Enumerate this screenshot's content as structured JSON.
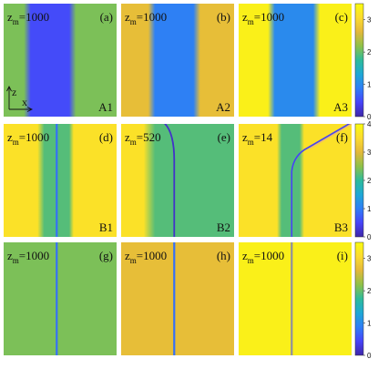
{
  "colors": {
    "colormap": [
      "#3e26a8",
      "#4743f9",
      "#2f7ef6",
      "#1ea8d6",
      "#2ebb9a",
      "#8fc148",
      "#e3b83a",
      "#fcdb2f",
      "#f9fb0e"
    ]
  },
  "chart_data": [
    {
      "type": "heatmap",
      "row_label": "",
      "colorbar": {
        "min": 0,
        "max": 3.5,
        "ticks": [
          "0",
          "1",
          "2",
          "3"
        ]
      },
      "panels": [
        {
          "id": "a",
          "tag": "(a)",
          "corner": "A1",
          "z_label": "z",
          "z_sub": "m",
          "z_value": "=1000",
          "axis_z": "z",
          "axis_x": "x",
          "profile": [
            [
              0,
              2.1
            ],
            [
              0.18,
              2.1
            ],
            [
              0.24,
              0.5
            ],
            [
              0.58,
              0.5
            ],
            [
              0.64,
              2.1
            ],
            [
              1,
              2.1
            ]
          ]
        },
        {
          "id": "b",
          "tag": "(b)",
          "corner": "A2",
          "z_label": "z",
          "z_sub": "m",
          "z_value": "=1000",
          "profile": [
            [
              0,
              2.7
            ],
            [
              0.24,
              2.7
            ],
            [
              0.3,
              0.9
            ],
            [
              0.64,
              0.9
            ],
            [
              0.7,
              2.7
            ],
            [
              1,
              2.7
            ]
          ]
        },
        {
          "id": "c",
          "tag": "(c)",
          "corner": "A3",
          "z_label": "z",
          "z_sub": "m",
          "z_value": "=1000",
          "profile": [
            [
              0,
              3.35
            ],
            [
              0.26,
              3.35
            ],
            [
              0.32,
              1.0
            ],
            [
              0.66,
              1.0
            ],
            [
              0.72,
              3.35
            ],
            [
              1,
              3.35
            ]
          ]
        }
      ]
    },
    {
      "type": "heatmap",
      "colorbar": {
        "min": 0,
        "max": 4,
        "ticks": [
          "0",
          "1",
          "2",
          "3",
          "4"
        ]
      },
      "panels": [
        {
          "id": "d",
          "tag": "(d)",
          "corner": "B1",
          "z_label": "z",
          "z_sub": "m",
          "z_value": "=1000",
          "profile": [
            [
              0,
              3.6
            ],
            [
              0.3,
              3.6
            ],
            [
              0.36,
              2.2
            ],
            [
              0.58,
              2.2
            ],
            [
              0.62,
              3.6
            ],
            [
              1,
              3.6
            ]
          ],
          "line_x": 0.47
        },
        {
          "id": "e",
          "tag": "(e)",
          "corner": "B2",
          "z_label": "z",
          "z_sub": "m",
          "z_value": "=520",
          "profile": [
            [
              0,
              3.6
            ],
            [
              0.2,
              3.6
            ],
            [
              0.3,
              2.2
            ],
            [
              1,
              2.2
            ]
          ],
          "curve_x": 0.47
        },
        {
          "id": "f",
          "tag": "(f)",
          "corner": "B3",
          "z_label": "z",
          "z_sub": "m",
          "z_value": "=14",
          "profile": [
            [
              0,
              3.6
            ],
            [
              0.34,
              3.6
            ],
            [
              0.38,
              2.2
            ],
            [
              0.54,
              2.2
            ],
            [
              0.58,
              3.6
            ],
            [
              1,
              3.6
            ]
          ],
          "curve_x": 0.47
        }
      ]
    },
    {
      "type": "heatmap",
      "colorbar": {
        "min": 0,
        "max": 3.5,
        "ticks": [
          "0",
          "1",
          "2",
          "3"
        ]
      },
      "panels": [
        {
          "id": "g",
          "tag": "(g)",
          "z_label": "z",
          "z_sub": "m",
          "z_value": "=1000",
          "profile": [
            [
              0,
              2.1
            ],
            [
              1,
              2.1
            ]
          ],
          "line_x": 0.47
        },
        {
          "id": "h",
          "tag": "(h)",
          "z_label": "z",
          "z_sub": "m",
          "z_value": "=1000",
          "profile": [
            [
              0,
              2.7
            ],
            [
              1,
              2.7
            ]
          ],
          "line_x": 0.47
        },
        {
          "id": "i",
          "tag": "(i)",
          "z_label": "z",
          "z_sub": "m",
          "z_value": "=1000",
          "profile": [
            [
              0,
              3.35
            ],
            [
              1,
              3.35
            ]
          ],
          "line_x": 0.47,
          "line_gray": true
        }
      ]
    }
  ]
}
